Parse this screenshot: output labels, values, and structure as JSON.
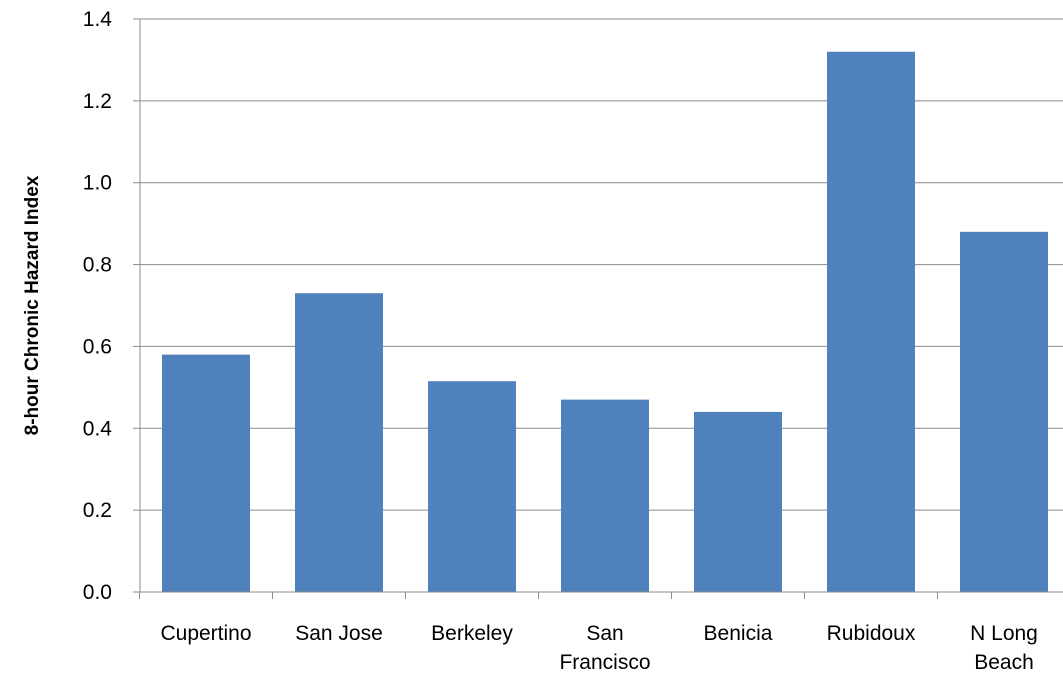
{
  "chart_data": {
    "type": "bar",
    "categories": [
      [
        "Cupertino"
      ],
      [
        "San Jose"
      ],
      [
        "Berkeley"
      ],
      [
        "San",
        "Francisco"
      ],
      [
        "Benicia"
      ],
      [
        "Rubidoux"
      ],
      [
        "N Long",
        "Beach"
      ]
    ],
    "values": [
      0.58,
      0.73,
      0.515,
      0.47,
      0.44,
      1.32,
      0.88
    ],
    "title": "",
    "xlabel": "",
    "ylabel": "8-hour Chronic Hazard Index",
    "ylim": [
      0,
      1.4
    ],
    "yticks": [
      "0.0",
      "0.2",
      "0.4",
      "0.6",
      "0.8",
      "1.0",
      "1.2",
      "1.4"
    ],
    "grid": true,
    "legend": "none",
    "colors": {
      "bar": "#4f81bd",
      "grid": "#8c8c8c",
      "axis": "#8c8c8c"
    }
  }
}
